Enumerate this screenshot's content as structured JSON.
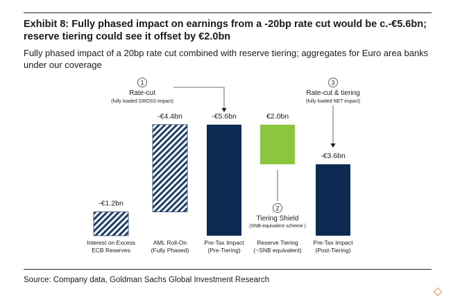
{
  "header": {
    "title": "Exhibit 8: Fully phased impact on earnings from a -20bp rate cut would be c.-€5.6bn; reserve tiering could see it offset by €2.0bn",
    "subtitle": "Fully phased impact of a 20bp rate cut combined with reserve tiering; aggregates for Euro area banks under our coverage"
  },
  "footer": {
    "source": "Source: Company data, Goldman Sachs Global Investment Research"
  },
  "chart_data": {
    "type": "bar",
    "title": "",
    "xlabel": "",
    "ylabel": "",
    "unit": "€bn",
    "categories": [
      [
        "Interest on Excess",
        "ECB Reserves"
      ],
      [
        "AML Roll-On",
        "(Fully Phased)"
      ],
      [
        "Pre-Tax Impact",
        "(Pre-Tiering)"
      ],
      [
        "Reserve Tiering",
        "(~SNB equivalent)"
      ],
      [
        "Pre-Tax Impact",
        "(Post-Tiering)"
      ]
    ],
    "values": [
      -1.2,
      -4.4,
      -5.6,
      2.0,
      -3.6
    ],
    "data_labels": [
      "-€1.2bn",
      "-€4.4bn",
      "-€5.6bn",
      "€2.0bn",
      "-€3.6bn"
    ],
    "styles": [
      "hatched",
      "hatched",
      "solid-navy",
      "solid-green",
      "solid-navy"
    ],
    "annotations": [
      {
        "number": "1",
        "title": "Rate-cut",
        "note": "(fully loaded GROSS impact)",
        "target": 2
      },
      {
        "number": "2",
        "title": "Tiering Shield",
        "note": "(SNB-equivalent scheme )",
        "target": 3
      },
      {
        "number": "3",
        "title": "Rate-cut & tiering",
        "note": "(fully loaded NET impact)",
        "target": 4
      }
    ],
    "colors": {
      "navy": "#0d2b52",
      "green": "#8cc63f",
      "hatch": "#1f3f66"
    }
  },
  "overlay": {
    "corner_icon": "◇"
  }
}
